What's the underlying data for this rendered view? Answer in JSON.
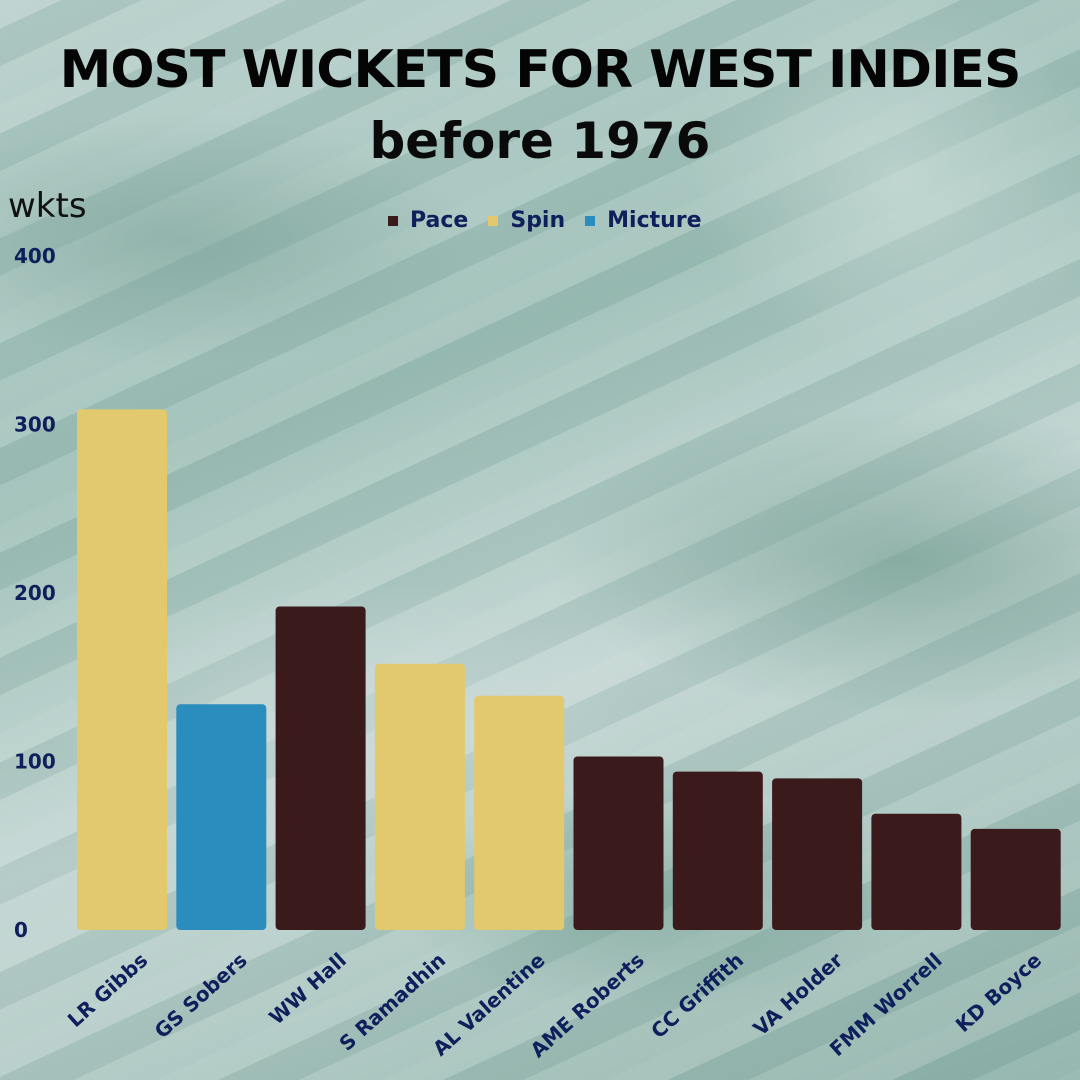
{
  "header": {
    "title": "MOST WICKETS FOR WEST INDIES",
    "subtitle": "before 1976"
  },
  "colors": {
    "pace": "#3a1a1b",
    "spin": "#e3c96d",
    "mixture": "#2b8cbe",
    "text": "#0e1f5c"
  },
  "legend": [
    {
      "label": "Pace",
      "color": "#3a1a1b"
    },
    {
      "label": "Spin",
      "color": "#e3c96d"
    },
    {
      "label": "Micture",
      "color": "#2b8cbe"
    }
  ],
  "chart_data": {
    "type": "bar",
    "title": "MOST WICKETS FOR WEST INDIES",
    "subtitle": "before 1976",
    "xlabel": "",
    "ylabel": "wkts",
    "ylim": [
      0,
      400
    ],
    "yticks": [
      0,
      100,
      200,
      300,
      400
    ],
    "grid": false,
    "legend_position": "top",
    "categories": [
      "LR Gibbs",
      "GS Sobers",
      "WW Hall",
      "S Ramadhin",
      "AL Valentine",
      "AME Roberts",
      "CC Griffith",
      "VA Holder",
      "FMM Worrell",
      "KD Boyce"
    ],
    "values": [
      309,
      134,
      192,
      158,
      139,
      103,
      94,
      90,
      69,
      60
    ],
    "bar_types": [
      "Spin",
      "Micture",
      "Pace",
      "Spin",
      "Spin",
      "Pace",
      "Pace",
      "Pace",
      "Pace",
      "Pace"
    ]
  }
}
